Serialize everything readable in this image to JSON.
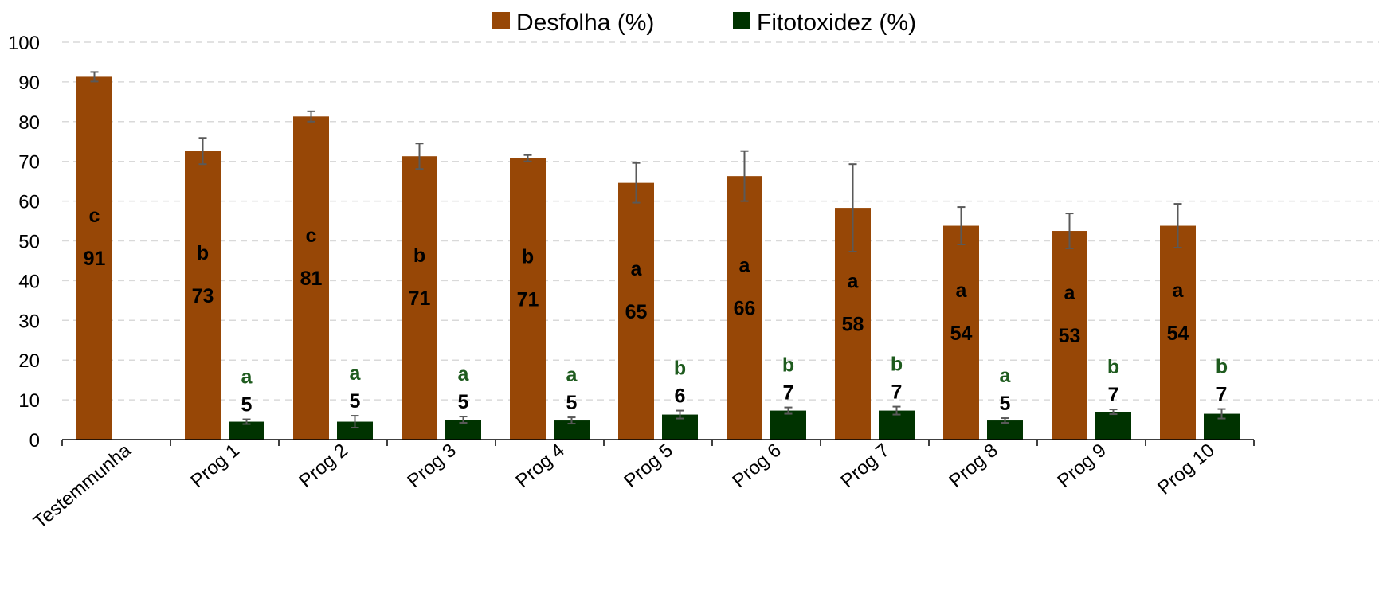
{
  "chart_data": {
    "type": "bar",
    "title": "",
    "xlabel": "",
    "ylabel": "",
    "ylim": [
      0,
      100
    ],
    "yticks": [
      0,
      10,
      20,
      30,
      40,
      50,
      60,
      70,
      80,
      90,
      100
    ],
    "grid": true,
    "legend_position": "top-center",
    "categories": [
      "Testemmunha",
      "Prog 1",
      "Prog 2",
      "Prog 3",
      "Prog 4",
      "Prog 5",
      "Prog 6",
      "Prog 7",
      "Prog 8",
      "Prog 9",
      "Prog 10"
    ],
    "series": [
      {
        "name": "Desfolha (%)",
        "color": "#974706",
        "label_color": "#000000",
        "values": [
          91.3,
          72.6,
          81.3,
          71.3,
          70.8,
          64.6,
          66.3,
          58.3,
          53.8,
          52.5,
          53.8
        ],
        "errors": [
          1.2,
          3.3,
          1.3,
          3.2,
          0.8,
          5.0,
          6.3,
          11.0,
          4.7,
          4.4,
          5.5
        ],
        "value_labels": [
          "91",
          "73",
          "81",
          "71",
          "71",
          "65",
          "66",
          "58",
          "54",
          "53",
          "54"
        ],
        "sig_letters": [
          "c",
          "b",
          "c",
          "b",
          "b",
          "a",
          "a",
          "a",
          "a",
          "a",
          "a"
        ]
      },
      {
        "name": "Fitotoxidez (%)",
        "color": "#003300",
        "label_color": "#1e5b1e",
        "values": [
          0,
          4.5,
          4.5,
          5.0,
          4.8,
          6.3,
          7.3,
          7.3,
          4.8,
          7.0,
          6.5
        ],
        "errors": [
          0,
          0.6,
          1.5,
          0.8,
          0.8,
          1.0,
          0.8,
          1.0,
          0.6,
          0.6,
          1.2
        ],
        "value_labels": [
          "",
          "5",
          "5",
          "5",
          "5",
          "6",
          "7",
          "7",
          "5",
          "7",
          "7"
        ],
        "sig_letters": [
          "",
          "a",
          "a",
          "a",
          "a",
          "b",
          "b",
          "b",
          "a",
          "b",
          "b"
        ]
      }
    ]
  }
}
